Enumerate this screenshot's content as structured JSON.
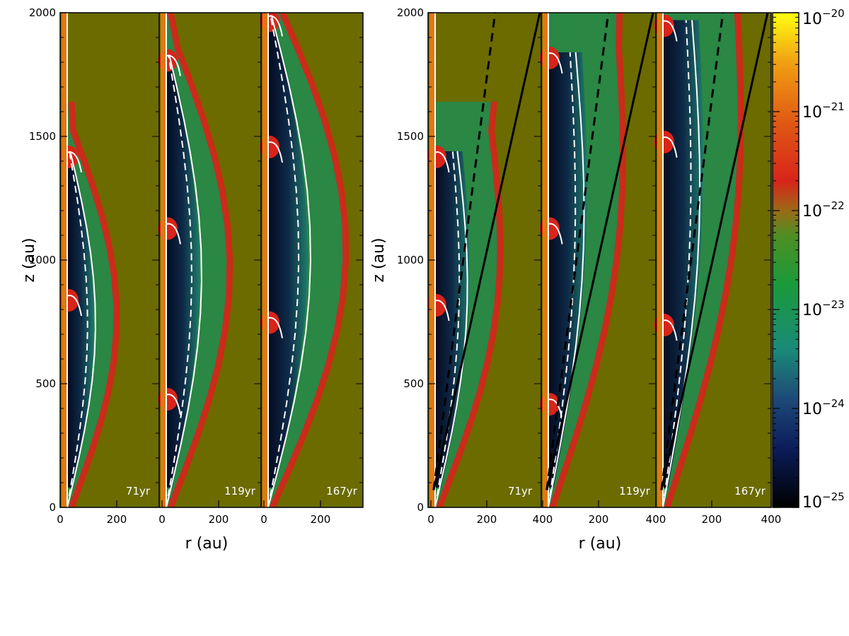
{
  "chart_data": {
    "type": "heatmap",
    "colormap": "log density (black-blue-green-olive-red-orange-yellow)",
    "colors": {
      "background": "#6b6b00",
      "jet": "#e07810",
      "shock": "#d8241a",
      "cavity_dark": "#0a0f28",
      "cavity_mid": "#1a4a5a",
      "green": "#1e8c50",
      "contour": "#ffffff"
    },
    "left_group": {
      "xlabel": "r (au)",
      "ylabel": "z (au)",
      "xlim": [
        0,
        350
      ],
      "ylim": [
        0,
        2000
      ],
      "x_ticks": [
        "0",
        "200"
      ],
      "y_ticks": [
        "0",
        "500",
        "1000",
        "1500",
        "2000"
      ],
      "panels": [
        {
          "time": "71yr",
          "bow_heads_z": [
            1440,
            860
          ],
          "outer_r_max": 200
        },
        {
          "time": "119yr",
          "bow_heads_z": [
            1830,
            1150,
            460
          ],
          "outer_r_max": 250
        },
        {
          "time": "167yr",
          "bow_heads_z": [
            1990,
            1480,
            770
          ],
          "outer_r_max": 300
        }
      ]
    },
    "right_group": {
      "xlabel": "r (au)",
      "ylabel": "z (au)",
      "xlim": [
        0,
        400
      ],
      "ylim": [
        0,
        2000
      ],
      "x_ticks": [
        "0",
        "200",
        "400",
        "200",
        "400",
        "200",
        "400"
      ],
      "y_ticks": [
        "0",
        "500",
        "1000",
        "1500",
        "2000"
      ],
      "panels": [
        {
          "time": "71yr",
          "bow_heads_z": [
            1440,
            840
          ]
        },
        {
          "time": "119yr",
          "bow_heads_z": [
            1840,
            1150,
            440
          ]
        },
        {
          "time": "167yr",
          "bow_heads_z": [
            1970,
            1500,
            760
          ]
        }
      ],
      "solid_line": {
        "r": [
          20,
          400
        ],
        "z": [
          70,
          2000
        ]
      },
      "dashed_line": {
        "r": [
          20,
          240
        ],
        "z": [
          70,
          2000
        ]
      }
    },
    "colorbar": {
      "scale": "log",
      "range": [
        1e-25,
        1e-20
      ],
      "tick_bases": [
        "10",
        "10",
        "10",
        "10",
        "10",
        "10"
      ],
      "tick_exponents": [
        "−20",
        "−21",
        "−22",
        "−23",
        "−24",
        "−25"
      ]
    }
  }
}
